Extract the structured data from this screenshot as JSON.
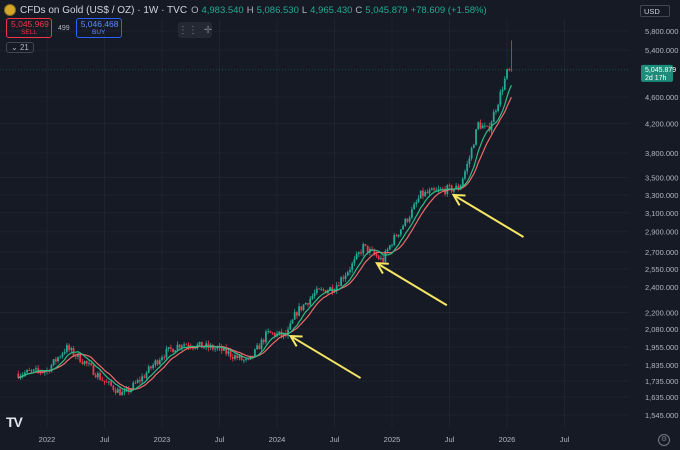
{
  "header": {
    "symbol": "CFDs on Gold (US$ / OZ) · 1W · TVC",
    "open_label": "O",
    "open": "4,983.540",
    "high_label": "H",
    "high": "5,086.530",
    "low_label": "L",
    "low": "4,965.430",
    "close_label": "C",
    "close": "5,045.879",
    "change": "+78.609 (+1.58%)"
  },
  "trade": {
    "sell_price": "5,045.969",
    "sell_label": "SELL",
    "spread": "499",
    "buy_price": "5,046.468",
    "buy_label": "BUY"
  },
  "indicator_count": "21",
  "currency": "USD",
  "price_tag": {
    "price": "5,045.879",
    "countdown": "2d 17h"
  },
  "colors": {
    "up": "#22ab94",
    "down": "#f23645",
    "ma_fast": "#2ebd85",
    "ma_slow": "#ef6a6a",
    "arrow": "#f5e663"
  },
  "icons": [
    "gold-symbol-icon",
    "crosshair-icon",
    "tradingview-logo-icon",
    "settings-gear-icon"
  ],
  "chart_data": {
    "type": "candlestick",
    "title": "",
    "x_ticks": [
      "2022",
      "Jul",
      "2023",
      "Jul",
      "2024",
      "Jul",
      "2025",
      "Jul",
      "2026",
      "Jul"
    ],
    "y_ticks": [
      "5,800.000",
      "5,400.000",
      "4,600.000",
      "4,200.000",
      "3,800.000",
      "3,500.000",
      "3,300.000",
      "3,100.000",
      "2,900.000",
      "2,700.000",
      "2,550.000",
      "2,400.000",
      "2,200.000",
      "2,080.000",
      "1,955.000",
      "1,835.000",
      "1,735.000",
      "1,635.000",
      "1,545.000"
    ],
    "y_scale": "log",
    "ylim": [
      1500,
      6200
    ],
    "series": [
      {
        "kind": "close_trend",
        "points": [
          [
            "2021-10",
            1780
          ],
          [
            "2022-01",
            1800
          ],
          [
            "2022-03",
            1950
          ],
          [
            "2022-05",
            1850
          ],
          [
            "2022-07",
            1730
          ],
          [
            "2022-09",
            1650
          ],
          [
            "2022-11",
            1760
          ],
          [
            "2023-01",
            1900
          ],
          [
            "2023-03",
            1980
          ],
          [
            "2023-05",
            1960
          ],
          [
            "2023-07",
            1940
          ],
          [
            "2023-10",
            1850
          ],
          [
            "2023-12",
            2050
          ],
          [
            "2024-02",
            2030
          ],
          [
            "2024-03",
            2200
          ],
          [
            "2024-05",
            2350
          ],
          [
            "2024-07",
            2400
          ],
          [
            "2024-09",
            2600
          ],
          [
            "2024-10",
            2750
          ],
          [
            "2024-12",
            2620
          ],
          [
            "2025-01",
            2800
          ],
          [
            "2025-03",
            3100
          ],
          [
            "2025-04",
            3300
          ],
          [
            "2025-06",
            3350
          ],
          [
            "2025-08",
            3380
          ],
          [
            "2025-09",
            3700
          ],
          [
            "2025-10",
            4200
          ],
          [
            "2025-11",
            4100
          ],
          [
            "2025-12",
            4500
          ],
          [
            "2026-01",
            5000
          ],
          [
            "2026-01-20",
            5045
          ]
        ]
      },
      {
        "kind": "moving_average_fast"
      },
      {
        "kind": "moving_average_slow"
      }
    ],
    "annotations": [
      {
        "type": "arrow",
        "target_date": "2024-02",
        "target_price": 2030
      },
      {
        "type": "arrow",
        "target_date": "2024-11",
        "target_price": 2600
      },
      {
        "type": "arrow",
        "target_date": "2025-07",
        "target_price": 3300
      }
    ]
  }
}
